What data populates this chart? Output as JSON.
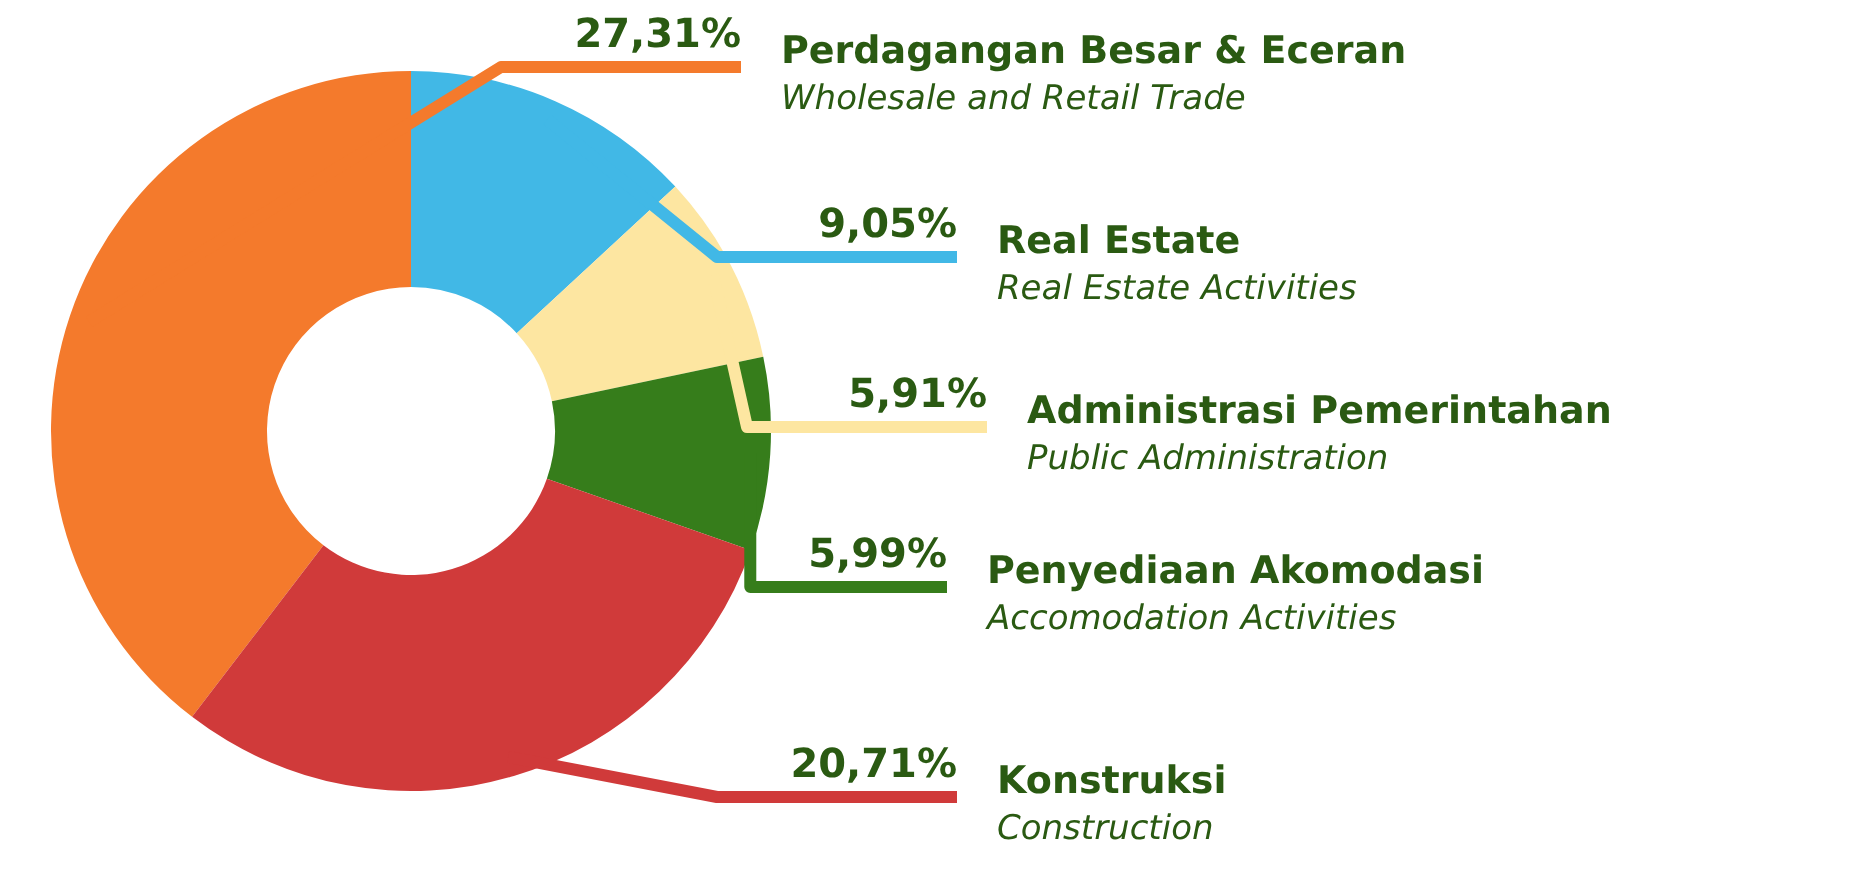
{
  "chart_data": {
    "type": "donut",
    "categories": [
      "Perdagangan Besar & Eceran",
      "Real Estate",
      "Administrasi Pemerintahan",
      "Penyediaan Akomodasi",
      "Konstruksi"
    ],
    "annotations": [
      "Wholesale and Retail Trade",
      "Real Estate Activities",
      "Public Administration",
      "Accomodation Activities",
      "Construction"
    ],
    "values": [
      27.31,
      9.05,
      5.91,
      5.99,
      20.71
    ],
    "value_labels": [
      "27,31%",
      "9,05%",
      "5,91%",
      "5,99%",
      "20,71%"
    ],
    "colors": [
      "#f47a2c",
      "#41b8e6",
      "#fde6a1",
      "#367d1b",
      "#d03a3a"
    ]
  }
}
